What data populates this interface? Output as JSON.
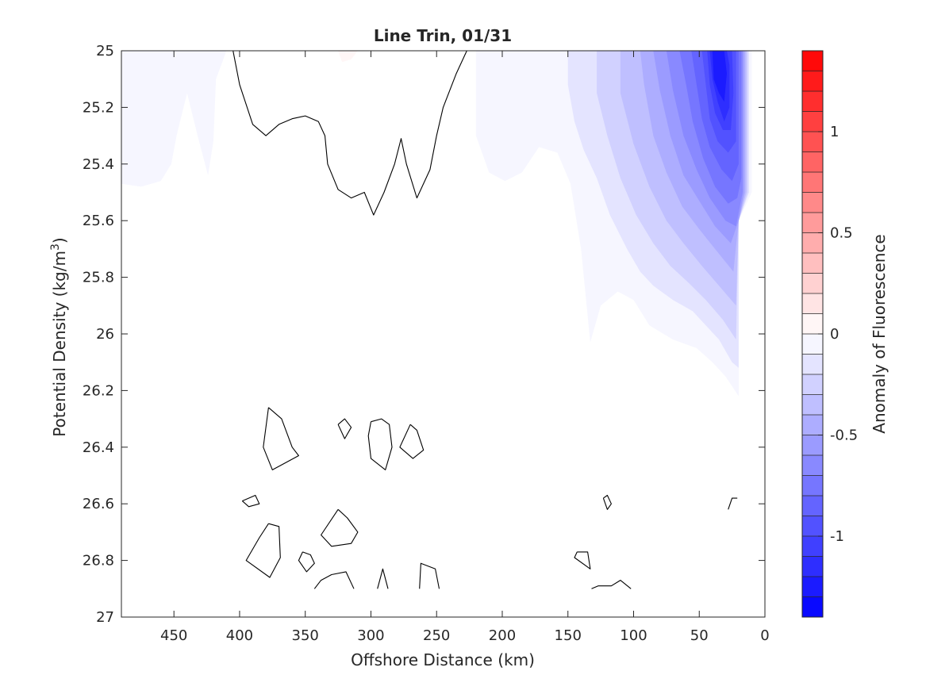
{
  "chart_data": {
    "type": "contour",
    "title": "Line Trin, 01/31",
    "xlabel": "Offshore Distance (km)",
    "ylabel_main": "Potential Density (kg/m",
    "ylabel_sup": "3",
    "ylabel_close": ")",
    "colorbar_label": "Anomaly of Fluorescence",
    "xlim": [
      490,
      0
    ],
    "ylim": [
      27,
      25
    ],
    "x_ticks": [
      450,
      400,
      350,
      300,
      250,
      200,
      150,
      100,
      50,
      0
    ],
    "y_ticks": [
      25,
      25.2,
      25.4,
      25.6,
      25.8,
      26,
      26.2,
      26.4,
      26.6,
      26.8,
      27
    ],
    "x_tick_labels": [
      "450",
      "400",
      "350",
      "300",
      "250",
      "200",
      "150",
      "100",
      "50",
      "0"
    ],
    "y_tick_labels": [
      "25",
      "25.2",
      "25.4",
      "25.6",
      "25.8",
      "26",
      "26.2",
      "26.4",
      "26.6",
      "26.8",
      "27"
    ],
    "colorbar": {
      "lim": [
        -1.4,
        1.4
      ],
      "levels": 28,
      "ticks": [
        1,
        0.5,
        0,
        -0.5,
        -1
      ],
      "tick_labels": [
        "1",
        "0.5",
        "0",
        "-0.5",
        "-1"
      ],
      "low_color": "#0000ff",
      "mid_color": "#ffffff",
      "high_color": "#ff0000"
    },
    "filled_regions": [
      {
        "level": -0.05,
        "points": [
          [
            490,
            25.1
          ],
          [
            480,
            25.2
          ],
          [
            490,
            25.25
          ],
          [
            490,
            25.1
          ]
        ]
      },
      {
        "level": -0.05,
        "points": [
          [
            490,
            25
          ],
          [
            490,
            25.47
          ],
          [
            475,
            25.48
          ],
          [
            460,
            25.46
          ],
          [
            452,
            25.4
          ],
          [
            448,
            25.3
          ],
          [
            440,
            25.15
          ],
          [
            432,
            25.3
          ],
          [
            424,
            25.44
          ],
          [
            420,
            25.32
          ],
          [
            418,
            25.1
          ],
          [
            410,
            25
          ],
          [
            490,
            25
          ]
        ]
      },
      {
        "level": 0.05,
        "points": [
          [
            325,
            25
          ],
          [
            322,
            25.04
          ],
          [
            315,
            25.03
          ],
          [
            310,
            25
          ],
          [
            325,
            25
          ]
        ]
      },
      {
        "level": -0.05,
        "points": [
          [
            220,
            25
          ],
          [
            220,
            25.3
          ],
          [
            210,
            25.43
          ],
          [
            198,
            25.46
          ],
          [
            185,
            25.43
          ],
          [
            172,
            25.34
          ],
          [
            158,
            25.36
          ],
          [
            148,
            25.47
          ],
          [
            140,
            25.7
          ],
          [
            133,
            26.03
          ],
          [
            125,
            25.9
          ],
          [
            112,
            25.85
          ],
          [
            100,
            25.88
          ],
          [
            88,
            25.97
          ],
          [
            70,
            26.02
          ],
          [
            52,
            26.05
          ],
          [
            40,
            26.1
          ],
          [
            30,
            26.15
          ],
          [
            20,
            26.22
          ],
          [
            20,
            25.6
          ],
          [
            10,
            25.5
          ],
          [
            10,
            25
          ],
          [
            220,
            25
          ]
        ]
      },
      {
        "level": -0.15,
        "points": [
          [
            150,
            25
          ],
          [
            150,
            25.12
          ],
          [
            145,
            25.25
          ],
          [
            138,
            25.35
          ],
          [
            128,
            25.45
          ],
          [
            118,
            25.58
          ],
          [
            105,
            25.7
          ],
          [
            95,
            25.78
          ],
          [
            85,
            25.83
          ],
          [
            70,
            25.88
          ],
          [
            55,
            25.92
          ],
          [
            45,
            25.97
          ],
          [
            35,
            26.02
          ],
          [
            25,
            26.1
          ],
          [
            20,
            26.12
          ],
          [
            20,
            25.6
          ],
          [
            12,
            25.5
          ],
          [
            12,
            25
          ],
          [
            150,
            25
          ]
        ]
      },
      {
        "level": -0.25,
        "points": [
          [
            128,
            25
          ],
          [
            128,
            25.15
          ],
          [
            120,
            25.3
          ],
          [
            110,
            25.45
          ],
          [
            98,
            25.58
          ],
          [
            85,
            25.68
          ],
          [
            72,
            25.76
          ],
          [
            58,
            25.82
          ],
          [
            45,
            25.88
          ],
          [
            32,
            25.95
          ],
          [
            22,
            26.02
          ],
          [
            20,
            25.6
          ],
          [
            13,
            25.5
          ],
          [
            13,
            25
          ],
          [
            128,
            25
          ]
        ]
      },
      {
        "level": -0.35,
        "points": [
          [
            110,
            25
          ],
          [
            110,
            25.15
          ],
          [
            100,
            25.33
          ],
          [
            88,
            25.48
          ],
          [
            75,
            25.6
          ],
          [
            62,
            25.68
          ],
          [
            48,
            25.76
          ],
          [
            35,
            25.83
          ],
          [
            22,
            25.9
          ],
          [
            20,
            25.6
          ],
          [
            14,
            25.5
          ],
          [
            14,
            25
          ],
          [
            110,
            25
          ]
        ]
      },
      {
        "level": -0.45,
        "points": [
          [
            95,
            25
          ],
          [
            92,
            25.12
          ],
          [
            85,
            25.3
          ],
          [
            75,
            25.43
          ],
          [
            63,
            25.55
          ],
          [
            50,
            25.63
          ],
          [
            38,
            25.7
          ],
          [
            24,
            25.78
          ],
          [
            20,
            25.6
          ],
          [
            15,
            25.5
          ],
          [
            15,
            25
          ],
          [
            95,
            25
          ]
        ]
      },
      {
        "level": -0.55,
        "points": [
          [
            85,
            25
          ],
          [
            80,
            25.14
          ],
          [
            72,
            25.3
          ],
          [
            62,
            25.44
          ],
          [
            50,
            25.53
          ],
          [
            38,
            25.62
          ],
          [
            26,
            25.68
          ],
          [
            20,
            25.6
          ],
          [
            16,
            25.5
          ],
          [
            16,
            25
          ],
          [
            85,
            25
          ]
        ]
      },
      {
        "level": -0.65,
        "points": [
          [
            75,
            25
          ],
          [
            70,
            25.14
          ],
          [
            62,
            25.3
          ],
          [
            52,
            25.42
          ],
          [
            42,
            25.52
          ],
          [
            30,
            25.6
          ],
          [
            22,
            25.62
          ],
          [
            17,
            25.5
          ],
          [
            17,
            25
          ],
          [
            75,
            25
          ]
        ]
      },
      {
        "level": -0.75,
        "points": [
          [
            65,
            25
          ],
          [
            60,
            25.12
          ],
          [
            55,
            25.25
          ],
          [
            47,
            25.38
          ],
          [
            38,
            25.48
          ],
          [
            28,
            25.54
          ],
          [
            21,
            25.52
          ],
          [
            18,
            25.45
          ],
          [
            18,
            25
          ],
          [
            65,
            25
          ]
        ]
      },
      {
        "level": -0.85,
        "points": [
          [
            56,
            25
          ],
          [
            52,
            25.12
          ],
          [
            48,
            25.24
          ],
          [
            42,
            25.34
          ],
          [
            33,
            25.42
          ],
          [
            25,
            25.46
          ],
          [
            20,
            25.4
          ],
          [
            20,
            25
          ],
          [
            56,
            25
          ]
        ]
      },
      {
        "level": -0.95,
        "points": [
          [
            48,
            25
          ],
          [
            45,
            25.12
          ],
          [
            42,
            25.24
          ],
          [
            36,
            25.32
          ],
          [
            28,
            25.36
          ],
          [
            22,
            25.32
          ],
          [
            22,
            25
          ],
          [
            48,
            25
          ]
        ]
      },
      {
        "level": -1.05,
        "points": [
          [
            44,
            25
          ],
          [
            42,
            25.12
          ],
          [
            38,
            25.22
          ],
          [
            32,
            25.28
          ],
          [
            26,
            25.28
          ],
          [
            24,
            25.15
          ],
          [
            25,
            25
          ],
          [
            44,
            25
          ]
        ]
      },
      {
        "level": -1.15,
        "points": [
          [
            42,
            25
          ],
          [
            40,
            25.1
          ],
          [
            36,
            25.18
          ],
          [
            31,
            25.25
          ],
          [
            27,
            25.2
          ],
          [
            27,
            25.05
          ],
          [
            29,
            25
          ],
          [
            42,
            25
          ]
        ]
      },
      {
        "level": -1.25,
        "points": [
          [
            40,
            25
          ],
          [
            39,
            25.1
          ],
          [
            35,
            25.15
          ],
          [
            31,
            25.18
          ],
          [
            29,
            25.08
          ],
          [
            31,
            25
          ],
          [
            40,
            25
          ]
        ]
      }
    ],
    "zero_contours": [
      [
        [
          405,
          25
        ],
        [
          400,
          25.12
        ],
        [
          390,
          25.26
        ],
        [
          380,
          25.3
        ],
        [
          370,
          25.26
        ],
        [
          360,
          25.24
        ],
        [
          350,
          25.23
        ],
        [
          340,
          25.25
        ],
        [
          335,
          25.3
        ],
        [
          333,
          25.4
        ],
        [
          325,
          25.49
        ],
        [
          315,
          25.52
        ],
        [
          305,
          25.5
        ],
        [
          298,
          25.58
        ],
        [
          290,
          25.5
        ],
        [
          282,
          25.4
        ],
        [
          277,
          25.31
        ],
        [
          273,
          25.4
        ],
        [
          265,
          25.52
        ],
        [
          255,
          25.42
        ],
        [
          250,
          25.3
        ],
        [
          245,
          25.2
        ],
        [
          235,
          25.08
        ],
        [
          227,
          25
        ]
      ],
      [
        [
          378,
          26.26
        ],
        [
          368,
          26.3
        ],
        [
          360,
          26.4
        ],
        [
          355,
          26.43
        ],
        [
          375,
          26.48
        ],
        [
          382,
          26.4
        ],
        [
          378,
          26.26
        ]
      ],
      [
        [
          325,
          26.32
        ],
        [
          320,
          26.3
        ],
        [
          315,
          26.33
        ],
        [
          320,
          26.37
        ],
        [
          325,
          26.32
        ]
      ],
      [
        [
          300,
          26.31
        ],
        [
          292,
          26.3
        ],
        [
          286,
          26.32
        ],
        [
          284,
          26.4
        ],
        [
          289,
          26.48
        ],
        [
          300,
          26.44
        ],
        [
          302,
          26.36
        ],
        [
          300,
          26.31
        ]
      ],
      [
        [
          270,
          26.32
        ],
        [
          278,
          26.4
        ],
        [
          268,
          26.44
        ],
        [
          260,
          26.41
        ],
        [
          265,
          26.34
        ],
        [
          270,
          26.32
        ]
      ],
      [
        [
          398,
          26.59
        ],
        [
          388,
          26.57
        ],
        [
          385,
          26.6
        ],
        [
          393,
          26.61
        ],
        [
          398,
          26.59
        ]
      ],
      [
        [
          378,
          26.67
        ],
        [
          370,
          26.68
        ],
        [
          369,
          26.79
        ],
        [
          377,
          26.86
        ],
        [
          395,
          26.8
        ],
        [
          385,
          26.72
        ],
        [
          378,
          26.67
        ]
      ],
      [
        [
          325,
          26.62
        ],
        [
          318,
          26.65
        ],
        [
          310,
          26.7
        ],
        [
          315,
          26.74
        ],
        [
          330,
          26.75
        ],
        [
          338,
          26.71
        ],
        [
          325,
          26.62
        ]
      ],
      [
        [
          352,
          26.77
        ],
        [
          346,
          26.78
        ],
        [
          343,
          26.81
        ],
        [
          349,
          26.84
        ],
        [
          355,
          26.8
        ],
        [
          352,
          26.77
        ]
      ],
      [
        [
          343,
          26.9
        ],
        [
          338,
          26.87
        ],
        [
          330,
          26.85
        ],
        [
          319,
          26.84
        ],
        [
          313,
          26.9
        ]
      ],
      [
        [
          295,
          26.9
        ],
        [
          291,
          26.83
        ],
        [
          287,
          26.9
        ]
      ],
      [
        [
          263,
          26.9
        ],
        [
          262,
          26.81
        ],
        [
          251,
          26.83
        ],
        [
          248,
          26.9
        ]
      ],
      [
        [
          143,
          26.77
        ],
        [
          135,
          26.77
        ],
        [
          133,
          26.83
        ],
        [
          145,
          26.79
        ],
        [
          143,
          26.77
        ]
      ],
      [
        [
          123,
          26.58
        ],
        [
          120,
          26.57
        ],
        [
          117,
          26.6
        ],
        [
          120,
          26.62
        ],
        [
          123,
          26.58
        ]
      ],
      [
        [
          28,
          26.62
        ],
        [
          25,
          26.58
        ],
        [
          21,
          26.58
        ]
      ],
      [
        [
          132,
          26.9
        ],
        [
          127,
          26.89
        ],
        [
          117,
          26.89
        ],
        [
          110,
          26.87
        ],
        [
          102,
          26.9
        ]
      ]
    ]
  }
}
